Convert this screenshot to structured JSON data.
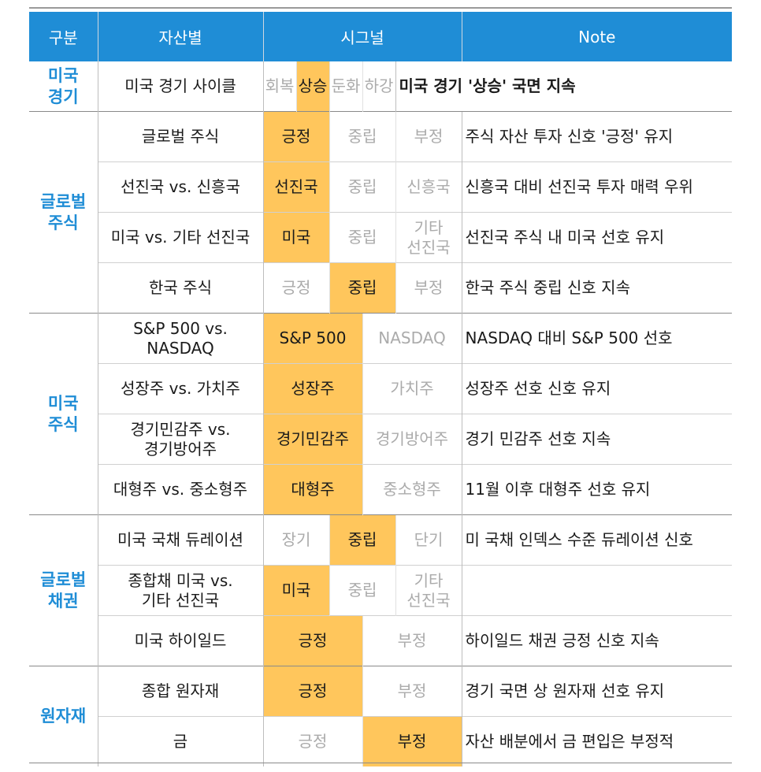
{
  "header": {
    "col1": "구분",
    "col2": "자산별",
    "col3": "시그널",
    "col4": "Note"
  },
  "colors": {
    "header_bg": "#1f8dd6",
    "category_text": "#1f8dd6",
    "highlight": "#ffc65c",
    "muted": "#ababab"
  },
  "groups": [
    {
      "category": "미국\n경기",
      "rows": [
        {
          "asset": "미국 경기 사이클",
          "signals": [
            {
              "label": "회복",
              "active": false
            },
            {
              "label": "상승",
              "active": true
            },
            {
              "label": "둔화",
              "active": false
            },
            {
              "label": "하강",
              "active": false
            }
          ],
          "note": "미국 경기 '상승' 국면 지속",
          "note_bold": true
        }
      ]
    },
    {
      "category": "글로벌\n주식",
      "rows": [
        {
          "asset": "글로벌 주식",
          "signals": [
            {
              "label": "긍정",
              "active": true
            },
            {
              "label": "중립",
              "active": false
            },
            {
              "label": "부정",
              "active": false
            }
          ],
          "note": "주식 자산 투자 신호 '긍정' 유지"
        },
        {
          "asset": "선진국  vs. 신흥국",
          "signals": [
            {
              "label": "선진국",
              "active": true
            },
            {
              "label": "중립",
              "active": false
            },
            {
              "label": "신흥국",
              "active": false
            }
          ],
          "note": "신흥국 대비 선진국 투자 매력 우위"
        },
        {
          "asset": "미국 vs. 기타 선진국",
          "signals": [
            {
              "label": "미국",
              "active": true
            },
            {
              "label": "중립",
              "active": false
            },
            {
              "label": "기타\n선진국",
              "active": false
            }
          ],
          "note": "선진국 주식 내 미국 선호 유지"
        },
        {
          "asset": "한국 주식",
          "signals": [
            {
              "label": "긍정",
              "active": false
            },
            {
              "label": "중립",
              "active": true
            },
            {
              "label": "부정",
              "active": false
            }
          ],
          "note": "한국 주식 중립 신호 지속"
        }
      ]
    },
    {
      "category": "미국\n주식",
      "rows": [
        {
          "asset": "S&P 500 vs.\nNASDAQ",
          "signals": [
            {
              "label": "S&P 500",
              "active": true
            },
            {
              "label": "NASDAQ",
              "active": false
            }
          ],
          "note": "NASDAQ 대비 S&P 500 선호"
        },
        {
          "asset": "성장주 vs. 가치주",
          "signals": [
            {
              "label": "성장주",
              "active": true
            },
            {
              "label": "가치주",
              "active": false
            }
          ],
          "note": "성장주 선호 신호 유지"
        },
        {
          "asset": "경기민감주 vs.\n경기방어주",
          "signals": [
            {
              "label": "경기민감주",
              "active": true
            },
            {
              "label": "경기방어주",
              "active": false
            }
          ],
          "note": "경기 민감주 선호 지속"
        },
        {
          "asset": "대형주 vs. 중소형주",
          "signals": [
            {
              "label": "대형주",
              "active": true
            },
            {
              "label": "중소형주",
              "active": false
            }
          ],
          "note": "11월 이후 대형주 선호 유지"
        }
      ]
    },
    {
      "category": "글로벌\n채권",
      "rows": [
        {
          "asset": "미국 국채 듀레이션",
          "signals": [
            {
              "label": "장기",
              "active": false
            },
            {
              "label": "중립",
              "active": true
            },
            {
              "label": "단기",
              "active": false
            }
          ],
          "note": "미 국채 인덱스 수준 듀레이션 신호"
        },
        {
          "asset": "종합채 미국 vs.\n기타 선진국",
          "signals": [
            {
              "label": "미국",
              "active": true
            },
            {
              "label": "중립",
              "active": false
            },
            {
              "label": "기타\n선진국",
              "active": false
            }
          ],
          "note": ""
        },
        {
          "asset": "미국 하이일드",
          "signals": [
            {
              "label": "긍정",
              "active": true
            },
            {
              "label": "부정",
              "active": false
            }
          ],
          "note": "하이일드 채권 긍정 신호 지속"
        }
      ]
    },
    {
      "category": "원자재",
      "rows": [
        {
          "asset": "종합 원자재",
          "signals": [
            {
              "label": "긍정",
              "active": true
            },
            {
              "label": "부정",
              "active": false
            }
          ],
          "note": "경기 국면 상 원자재 선호 유지"
        },
        {
          "asset": "금",
          "signals": [
            {
              "label": "긍정",
              "active": false
            },
            {
              "label": "부정",
              "active": true
            }
          ],
          "note": "자산 배분에서 금 편입은 부정적"
        }
      ]
    }
  ]
}
